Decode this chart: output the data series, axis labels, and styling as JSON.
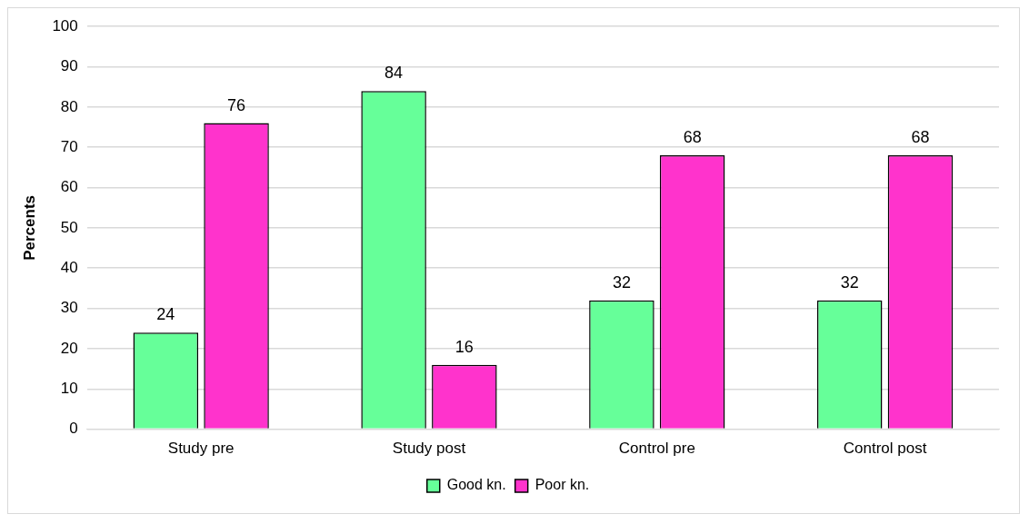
{
  "chart_data": {
    "type": "bar",
    "ylabel": "Percents",
    "categories": [
      "Study pre",
      "Study post",
      "Control pre",
      "Control post"
    ],
    "series": [
      {
        "name": "Good kn.",
        "color": "#66ff99",
        "values": [
          24,
          84,
          32,
          32
        ]
      },
      {
        "name": "Poor kn.",
        "color": "#ff33cc",
        "values": [
          76,
          16,
          68,
          68
        ]
      }
    ],
    "ylim": [
      0,
      100
    ],
    "yticks": [
      0,
      10,
      20,
      30,
      40,
      50,
      60,
      70,
      80,
      90,
      100
    ],
    "grid": "y",
    "legend": "bottom",
    "data_labels": true
  }
}
